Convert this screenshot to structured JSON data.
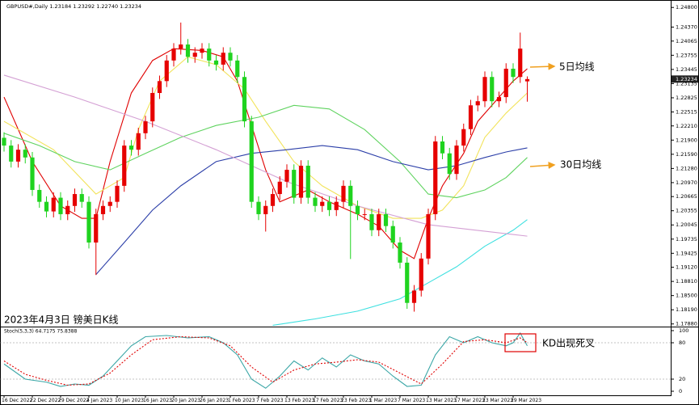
{
  "header": "GBPUSD#,Daily  1.23184 1.23292 1.22740 1.23234",
  "caption": "2023年4月3日 镑美日K线",
  "annotations": [
    "5日均线",
    "30日均线",
    "KD出现死叉"
  ],
  "chart_data": [
    {
      "type": "candlestick",
      "categories": [
        "16 Dec 2022",
        null,
        null,
        null,
        "22 Dec 2022",
        null,
        null,
        null,
        "29 Dec 2022",
        null,
        null,
        null,
        "4 Jan 2023",
        null,
        null,
        null,
        "10 Jan 2023",
        null,
        null,
        null,
        "16 Jan 2023",
        null,
        null,
        null,
        "20 Jan 2023",
        null,
        null,
        null,
        "26 Jan 2023",
        null,
        null,
        null,
        "1 Feb 2023",
        null,
        null,
        null,
        "7 Feb 2023",
        null,
        null,
        null,
        "13 Feb 2023",
        null,
        null,
        null,
        "17 Feb 2023",
        null,
        null,
        null,
        "23 Feb 2023",
        null,
        null,
        null,
        "1 Mar 2023",
        null,
        null,
        null,
        "7 Mar 2023",
        null,
        null,
        null,
        "13 Mar 2023",
        null,
        null,
        null,
        "17 Mar 2023",
        null,
        null,
        null,
        "23 Mar 2023",
        null,
        null,
        null,
        "29 Mar 2023",
        null,
        null
      ],
      "open": [
        1.2195,
        1.2178,
        1.2143,
        1.2169,
        1.2152,
        1.2081,
        1.2055,
        1.2034,
        1.2064,
        1.2028,
        1.2046,
        1.2072,
        1.2055,
        1.1966,
        1.2028,
        1.2046,
        1.2055,
        1.209,
        1.2178,
        1.2169,
        1.2205,
        1.2231,
        1.2293,
        1.2319,
        1.2364,
        1.239,
        1.2399,
        1.2372,
        1.2381,
        1.239,
        1.2364,
        1.2355,
        1.2381,
        1.2364,
        1.2328,
        1.2231,
        1.2055,
        1.2028,
        1.2046,
        1.2072,
        1.2099,
        1.2125,
        1.2064,
        1.2134,
        1.2064,
        1.2046,
        1.2055,
        1.2037,
        1.2055,
        1.209,
        1.2046,
        1.2028,
        1.2028,
        1.1993,
        1.2028,
        1.2002,
        1.1966,
        1.1922,
        1.1834,
        1.1861,
        1.1931,
        1.2028,
        1.2187,
        1.2161,
        1.2116,
        1.2178,
        1.2214,
        1.2266,
        1.2275,
        1.2328,
        1.2275,
        1.2284,
        1.2346,
        1.2328,
        1.23184
      ],
      "high": [
        1.2207,
        1.219,
        1.2181,
        1.2181,
        1.2164,
        1.2093,
        1.2067,
        1.2076,
        1.2076,
        1.2058,
        1.2084,
        1.2084,
        1.2067,
        1.204,
        1.2058,
        1.2067,
        1.2102,
        1.219,
        1.219,
        1.2217,
        1.2243,
        1.2305,
        1.2331,
        1.2376,
        1.2402,
        1.2447,
        1.2411,
        1.2393,
        1.2402,
        1.2402,
        1.2376,
        1.2393,
        1.2393,
        1.2376,
        1.234,
        1.2243,
        1.2067,
        1.2058,
        1.2084,
        1.2111,
        1.2137,
        1.2137,
        1.2146,
        1.2146,
        1.2076,
        1.2067,
        1.2067,
        1.2067,
        1.2102,
        1.2102,
        1.2058,
        1.204,
        1.204,
        1.204,
        1.204,
        1.2014,
        1.1978,
        1.1934,
        1.1873,
        1.1943,
        1.204,
        1.2199,
        1.2199,
        1.2173,
        1.219,
        1.2226,
        1.2278,
        1.2287,
        1.234,
        1.234,
        1.2296,
        1.2358,
        1.2358,
        1.2425,
        1.23292
      ],
      "low": [
        1.2165,
        1.213,
        1.213,
        1.2139,
        1.2068,
        1.2042,
        1.2021,
        1.2021,
        1.2015,
        1.2015,
        1.2033,
        1.2042,
        1.1953,
        1.1895,
        1.2015,
        1.2033,
        1.2042,
        1.2077,
        1.2156,
        1.2156,
        1.2192,
        1.2218,
        1.228,
        1.2306,
        1.2351,
        1.2377,
        1.2359,
        1.2359,
        1.2368,
        1.2351,
        1.2342,
        1.2342,
        1.2351,
        1.2315,
        1.2218,
        1.2042,
        1.2015,
        1.199,
        1.2033,
        1.2059,
        1.2086,
        1.2051,
        1.2051,
        1.2051,
        1.2033,
        1.2033,
        1.2024,
        1.2024,
        1.2042,
        1.193,
        1.2015,
        1.2015,
        1.198,
        1.198,
        1.1989,
        1.1953,
        1.1909,
        1.1821,
        1.1815,
        1.1848,
        1.1918,
        1.2015,
        1.2148,
        1.2103,
        1.2103,
        1.2165,
        1.2201,
        1.2253,
        1.2262,
        1.2262,
        1.2262,
        1.2271,
        1.2315,
        1.2315,
        1.2274
      ],
      "close": [
        1.2178,
        1.2143,
        1.2169,
        1.2152,
        1.2081,
        1.2055,
        1.2034,
        1.2064,
        1.2028,
        1.2046,
        1.2072,
        1.2055,
        1.1966,
        1.2028,
        1.2046,
        1.2055,
        1.209,
        1.2178,
        1.2169,
        1.2205,
        1.2231,
        1.2293,
        1.2319,
        1.2364,
        1.239,
        1.2399,
        1.2372,
        1.2381,
        1.239,
        1.2364,
        1.2355,
        1.2381,
        1.2364,
        1.2328,
        1.2231,
        1.2055,
        1.2028,
        1.2046,
        1.2072,
        1.2099,
        1.2125,
        1.2064,
        1.2134,
        1.2064,
        1.2046,
        1.2055,
        1.2037,
        1.2055,
        1.209,
        1.2046,
        1.2028,
        1.2028,
        1.1993,
        1.2028,
        1.2002,
        1.1966,
        1.1922,
        1.1834,
        1.1861,
        1.1931,
        1.2028,
        1.2187,
        1.2161,
        1.2116,
        1.2178,
        1.2214,
        1.2266,
        1.2275,
        1.2328,
        1.2275,
        1.2284,
        1.2346,
        1.2328,
        1.239,
        1.23234
      ],
      "up_color": "#e60000",
      "down_color": "#1fd31f",
      "lines": [
        {
          "color": "#e00000",
          "x": [
            0,
            4,
            8,
            11,
            13,
            15,
            18,
            21,
            24,
            28,
            31,
            33,
            37,
            39,
            43,
            46,
            50,
            53,
            56,
            58,
            60,
            62,
            65,
            67,
            69,
            72,
            74
          ],
          "values": [
            1.2284,
            1.2143,
            1.2046,
            1.2019,
            1.2019,
            1.2143,
            1.2293,
            1.2364,
            1.239,
            1.2386,
            1.2372,
            1.2319,
            1.2125,
            1.2055,
            1.2081,
            1.2055,
            1.2028,
            1.2002,
            1.1949,
            1.1931,
            1.2019,
            1.209,
            1.2161,
            1.2231,
            1.2266,
            1.2319,
            1.2346
          ]
        },
        {
          "color": "#f2e35a",
          "x": [
            0,
            7,
            13,
            17,
            19,
            22,
            26,
            30,
            34,
            37,
            41,
            45,
            50,
            55,
            59,
            62,
            65,
            68,
            71,
            74
          ],
          "values": [
            1.2231,
            1.2169,
            1.2072,
            1.2108,
            1.2213,
            1.2319,
            1.2372,
            1.2355,
            1.2302,
            1.2231,
            1.2143,
            1.209,
            1.2046,
            1.2019,
            1.2019,
            1.2037,
            1.209,
            1.2196,
            1.2249,
            1.2293
          ]
        },
        {
          "color": "#5fd35f",
          "x": [
            0,
            5,
            10,
            15,
            20,
            25,
            30,
            36,
            41,
            46,
            51,
            56,
            60,
            64,
            68,
            71,
            74
          ],
          "values": [
            1.2205,
            1.2178,
            1.2143,
            1.2125,
            1.2161,
            1.2196,
            1.2222,
            1.224,
            1.2266,
            1.2258,
            1.2213,
            1.2143,
            1.2072,
            1.2064,
            1.2081,
            1.2108,
            1.2152
          ]
        },
        {
          "color": "#2b3ea8",
          "x": [
            13,
            17,
            21,
            25,
            30,
            35,
            40,
            45,
            50,
            55,
            60,
            64,
            68,
            71,
            74
          ],
          "values": [
            1.1896,
            1.1966,
            1.2037,
            1.209,
            1.2143,
            1.2161,
            1.2169,
            1.2178,
            1.2169,
            1.2143,
            1.2125,
            1.2134,
            1.2152,
            1.2164,
            1.2173
          ]
        },
        {
          "color": "#3ee0e0",
          "x": [
            38,
            44,
            50,
            56,
            60,
            64,
            68,
            72,
            74
          ],
          "values": [
            1.1785,
            1.1799,
            1.1816,
            1.1843,
            1.1878,
            1.1913,
            1.1958,
            1.1993,
            1.2016
          ]
        },
        {
          "color": "#d4a0d4",
          "x": [
            0,
            10,
            20,
            30,
            40,
            50,
            60,
            74
          ],
          "values": [
            1.2332,
            1.2284,
            1.2231,
            1.2169,
            1.2099,
            1.2046,
            1.2005,
            1.198
          ]
        }
      ],
      "ylim": [
        1.1784,
        1.2491
      ],
      "yticks": [
        {
          "value": 1.248,
          "label": "1.24800"
        },
        {
          "value": 1.2437,
          "label": "1.24370"
        },
        {
          "value": 1.24065,
          "label": "1.24065"
        },
        {
          "value": 1.23755,
          "label": "1.23755"
        },
        {
          "value": 1.23445,
          "label": "1.23445"
        },
        {
          "value": 1.23135,
          "label": "1.23135"
        },
        {
          "value": 1.22825,
          "label": "1.22825"
        },
        {
          "value": 1.22515,
          "label": "1.22515"
        },
        {
          "value": 1.2221,
          "label": "1.22210"
        },
        {
          "value": 1.219,
          "label": "1.21900"
        },
        {
          "value": 1.2159,
          "label": "1.21590"
        },
        {
          "value": 1.2128,
          "label": "1.21280"
        },
        {
          "value": 1.2097,
          "label": "1.20970"
        },
        {
          "value": 1.20665,
          "label": "1.20665"
        },
        {
          "value": 1.20355,
          "label": "1.20355"
        },
        {
          "value": 1.20045,
          "label": "1.20045"
        },
        {
          "value": 1.19735,
          "label": "1.19735"
        },
        {
          "value": 1.19425,
          "label": "1.19425"
        },
        {
          "value": 1.1912,
          "label": "1.19120"
        },
        {
          "value": 1.1881,
          "label": "1.18810"
        },
        {
          "value": 1.185,
          "label": "1.18500"
        },
        {
          "value": 1.1819,
          "label": "1.18190"
        },
        {
          "value": 1.1788,
          "label": "1.17880"
        }
      ],
      "last_price": {
        "value": 1.23234,
        "label": "1.23234"
      }
    },
    {
      "type": "stochastic",
      "title": "Stoch(5,3,3) 64.7175 75.8388",
      "series": [
        {
          "color": "#3aa6a6",
          "x": [
            0,
            3,
            6,
            8,
            10,
            12,
            14,
            16,
            18,
            20,
            23,
            26,
            29,
            31,
            33,
            35,
            37,
            39,
            41,
            43,
            45,
            47,
            49,
            51,
            53,
            55,
            57,
            59,
            61,
            63,
            65,
            67,
            69,
            71,
            72,
            73,
            74
          ],
          "values": [
            45,
            20,
            15,
            8,
            12,
            10,
            25,
            50,
            75,
            90,
            92,
            88,
            90,
            80,
            60,
            20,
            5,
            25,
            50,
            35,
            55,
            40,
            60,
            50,
            45,
            25,
            8,
            10,
            60,
            90,
            80,
            90,
            80,
            75,
            80,
            96,
            75
          ]
        },
        {
          "color": "#e00000",
          "dashed": true,
          "x": [
            0,
            3,
            6,
            9,
            12,
            15,
            18,
            21,
            25,
            29,
            32,
            35,
            38,
            41,
            44,
            47,
            50,
            53,
            56,
            59,
            62,
            65,
            68,
            71,
            73,
            74
          ],
          "values": [
            50,
            28,
            18,
            10,
            12,
            30,
            60,
            85,
            90,
            88,
            75,
            40,
            15,
            35,
            45,
            48,
            52,
            48,
            30,
            12,
            45,
            82,
            85,
            80,
            88,
            80
          ]
        }
      ],
      "ylim": [
        0,
        100
      ],
      "yticks": [
        0,
        20,
        80,
        100
      ],
      "levels": [
        20,
        80
      ]
    }
  ]
}
